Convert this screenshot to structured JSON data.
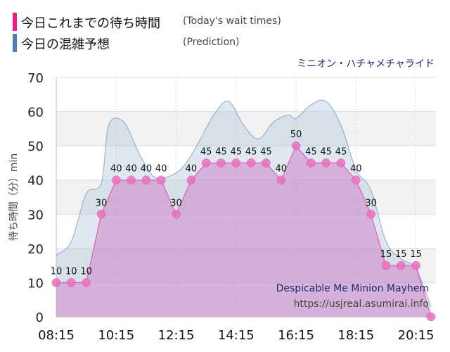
{
  "legend": {
    "today": {
      "label": "今日これまでの待ち時間",
      "sub": "(Today's wait times)",
      "color": "#ee1c84"
    },
    "prediction": {
      "label": "今日の混雑予想",
      "sub": "(Prediction)",
      "color": "#4a7fb0"
    }
  },
  "ride_name_ja": "ミニオン・ハチャメチャライド",
  "footer": {
    "ride_name_en": "Despicable Me Minion Mayhem",
    "url": "https://usjreal.asumirai.info"
  },
  "chart_data": {
    "type": "line",
    "ylabel": "待ち時間（分）min",
    "ylim": [
      0,
      70
    ],
    "yticks": [
      0,
      10,
      20,
      30,
      40,
      50,
      60,
      70
    ],
    "xlim": [
      "08:15",
      "20:55"
    ],
    "xticks": [
      "08:15",
      "10:15",
      "12:15",
      "14:15",
      "16:15",
      "18:15",
      "20:15"
    ],
    "grid": "horizontal",
    "series": [
      {
        "name": "今日これまでの待ち時間",
        "kind": "actual",
        "color": "#ee1c84",
        "points": [
          [
            "08:15",
            10
          ],
          [
            "08:45",
            10
          ],
          [
            "09:15",
            10
          ],
          [
            "09:45",
            30
          ],
          [
            "10:15",
            40
          ],
          [
            "10:45",
            40
          ],
          [
            "11:15",
            40
          ],
          [
            "11:45",
            40
          ],
          [
            "12:15",
            30
          ],
          [
            "12:45",
            40
          ],
          [
            "13:15",
            45
          ],
          [
            "13:45",
            45
          ],
          [
            "14:15",
            45
          ],
          [
            "14:45",
            45
          ],
          [
            "15:15",
            45
          ],
          [
            "15:45",
            40
          ],
          [
            "16:15",
            50
          ],
          [
            "16:45",
            45
          ],
          [
            "17:15",
            45
          ],
          [
            "17:45",
            45
          ],
          [
            "18:15",
            40
          ],
          [
            "18:45",
            30
          ],
          [
            "19:15",
            15
          ],
          [
            "19:45",
            15
          ],
          [
            "20:15",
            15
          ],
          [
            "20:45",
            0
          ]
        ],
        "labeled_to": "20:15"
      },
      {
        "name": "今日の混雑予想",
        "kind": "prediction",
        "color": "#4a7fb0",
        "points": [
          [
            "08:15",
            18
          ],
          [
            "08:45",
            22
          ],
          [
            "09:15",
            36
          ],
          [
            "09:45",
            39
          ],
          [
            "10:00",
            56
          ],
          [
            "10:30",
            57
          ],
          [
            "11:00",
            48
          ],
          [
            "11:30",
            41
          ],
          [
            "12:00",
            41
          ],
          [
            "12:30",
            44
          ],
          [
            "13:00",
            51
          ],
          [
            "13:30",
            59
          ],
          [
            "14:00",
            63
          ],
          [
            "14:30",
            56
          ],
          [
            "15:00",
            52
          ],
          [
            "15:30",
            57
          ],
          [
            "16:00",
            59
          ],
          [
            "16:15",
            58
          ],
          [
            "16:45",
            62
          ],
          [
            "17:15",
            63
          ],
          [
            "17:45",
            56
          ],
          [
            "18:15",
            43
          ],
          [
            "18:45",
            37
          ],
          [
            "19:15",
            22
          ],
          [
            "19:45",
            17
          ],
          [
            "20:15",
            14
          ],
          [
            "20:45",
            3
          ]
        ]
      }
    ]
  }
}
